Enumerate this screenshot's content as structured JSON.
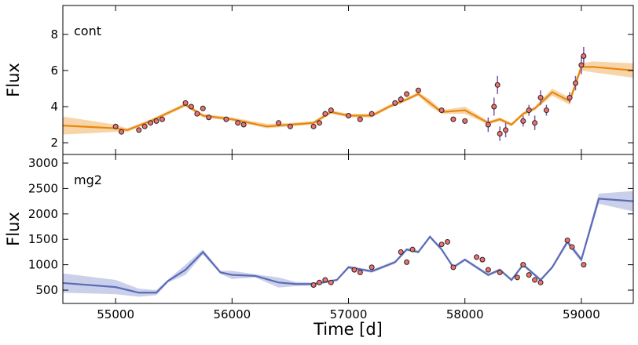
{
  "chart_data": [
    {
      "type": "line",
      "panel_label": "cont",
      "ylabel": "Flux",
      "xlim": [
        54547,
        59446
      ],
      "xticks": [
        55000,
        56000,
        57000,
        58000,
        59000
      ],
      "ylim": [
        1.35,
        9.6
      ],
      "yticks": [
        2,
        4,
        6,
        8
      ],
      "model": {
        "color": "#e8870e",
        "band_color": "#f2b96e",
        "x": [
          54547,
          55000,
          55100,
          55300,
          55600,
          55750,
          56000,
          56300,
          56500,
          56700,
          56850,
          57000,
          57200,
          57350,
          57500,
          57600,
          57700,
          57800,
          58000,
          58200,
          58300,
          58400,
          58500,
          58600,
          58750,
          58900,
          59000,
          59100,
          59446
        ],
        "y": [
          2.95,
          2.8,
          2.7,
          3.2,
          4.1,
          3.5,
          3.3,
          2.9,
          3.0,
          3.1,
          3.7,
          3.5,
          3.5,
          4.0,
          4.4,
          4.7,
          4.2,
          3.7,
          3.8,
          3.1,
          3.3,
          3.0,
          3.6,
          3.9,
          4.8,
          4.3,
          6.2,
          6.2,
          6.0
        ],
        "lower": [
          2.45,
          2.6,
          2.6,
          3.1,
          4.0,
          3.4,
          3.2,
          2.8,
          2.9,
          3.0,
          3.6,
          3.4,
          3.4,
          3.9,
          4.3,
          4.6,
          4.0,
          3.6,
          3.6,
          3.0,
          3.2,
          2.9,
          3.5,
          3.8,
          4.6,
          4.1,
          6.0,
          5.9,
          5.6
        ],
        "upper": [
          3.45,
          3.0,
          2.8,
          3.3,
          4.2,
          3.6,
          3.4,
          3.05,
          3.1,
          3.2,
          3.8,
          3.6,
          3.6,
          4.1,
          4.5,
          4.8,
          4.4,
          3.8,
          4.0,
          3.2,
          3.4,
          3.1,
          3.7,
          4.0,
          5.0,
          4.5,
          6.4,
          6.5,
          6.4
        ]
      },
      "observations": {
        "color": "#f07070",
        "edge_color": "#222222",
        "error_color": "#8050a0",
        "x": [
          55000,
          55050,
          55200,
          55250,
          55300,
          55350,
          55400,
          55600,
          55650,
          55700,
          55750,
          55800,
          55950,
          56050,
          56100,
          56400,
          56500,
          56700,
          56750,
          56800,
          56850,
          57000,
          57100,
          57200,
          57400,
          57450,
          57500,
          57600,
          57800,
          57900,
          58000,
          58200,
          58250,
          58280,
          58300,
          58350,
          58500,
          58550,
          58600,
          58650,
          58700,
          58900,
          58950,
          59000,
          59020
        ],
        "y": [
          2.9,
          2.6,
          2.7,
          2.9,
          3.1,
          3.2,
          3.3,
          4.2,
          4.0,
          3.6,
          3.9,
          3.4,
          3.3,
          3.1,
          3.0,
          3.1,
          2.9,
          2.9,
          3.1,
          3.6,
          3.8,
          3.5,
          3.3,
          3.6,
          4.2,
          4.4,
          4.7,
          4.9,
          3.8,
          3.3,
          3.2,
          3.0,
          4.0,
          5.2,
          2.5,
          2.7,
          3.2,
          3.8,
          3.1,
          4.5,
          3.8,
          4.5,
          5.3,
          6.3,
          6.8
        ],
        "error": [
          0.05,
          0.05,
          0.1,
          0.1,
          0.1,
          0.1,
          0.1,
          0.1,
          0.1,
          0.1,
          0.15,
          0.1,
          0.1,
          0.1,
          0.1,
          0.1,
          0.1,
          0.1,
          0.1,
          0.15,
          0.1,
          0.1,
          0.1,
          0.1,
          0.15,
          0.2,
          0.15,
          0.1,
          0.1,
          0.1,
          0.1,
          0.4,
          0.5,
          0.5,
          0.4,
          0.4,
          0.3,
          0.3,
          0.4,
          0.4,
          0.3,
          0.3,
          0.4,
          0.5,
          0.5
        ]
      }
    },
    {
      "type": "line",
      "panel_label": "mg2",
      "ylabel": "Flux",
      "xlabel": "Time [d]",
      "xlim": [
        54547,
        59446
      ],
      "xticks": [
        55000,
        56000,
        57000,
        58000,
        59000
      ],
      "ylim": [
        238,
        3170
      ],
      "yticks": [
        500,
        1000,
        1500,
        2000,
        2500,
        3000
      ],
      "model": {
        "color": "#5b6bb5",
        "band_color": "#a9b0dc",
        "x": [
          54547,
          55000,
          55200,
          55350,
          55450,
          55600,
          55750,
          55900,
          56000,
          56200,
          56400,
          56550,
          56700,
          56900,
          57000,
          57200,
          57400,
          57500,
          57600,
          57700,
          57800,
          57900,
          58000,
          58200,
          58300,
          58400,
          58500,
          58650,
          58750,
          58880,
          59000,
          59150,
          59446
        ],
        "y": [
          640,
          560,
          450,
          450,
          680,
          900,
          1250,
          850,
          800,
          780,
          650,
          620,
          620,
          700,
          950,
          870,
          1050,
          1300,
          1250,
          1550,
          1300,
          950,
          1100,
          800,
          900,
          700,
          1000,
          700,
          950,
          1450,
          1100,
          2300,
          2250
        ],
        "lower": [
          450,
          420,
          370,
          400,
          650,
          800,
          1200,
          820,
          720,
          750,
          550,
          580,
          590,
          680,
          920,
          840,
          1020,
          1270,
          1220,
          1520,
          1270,
          920,
          1070,
          770,
          870,
          670,
          970,
          670,
          920,
          1400,
          1050,
          2200,
          2050
        ],
        "upper": [
          830,
          700,
          530,
          500,
          710,
          1000,
          1300,
          880,
          880,
          810,
          750,
          660,
          650,
          720,
          980,
          900,
          1080,
          1330,
          1280,
          1580,
          1330,
          980,
          1130,
          830,
          930,
          730,
          1030,
          730,
          980,
          1500,
          1150,
          2400,
          2450
        ]
      },
      "observations": {
        "color": "#f07070",
        "edge_color": "#222222",
        "error_color": "#8050a0",
        "x": [
          56700,
          56750,
          56800,
          56850,
          57050,
          57100,
          57200,
          57450,
          57500,
          57550,
          57800,
          57850,
          57900,
          58100,
          58150,
          58200,
          58300,
          58450,
          58500,
          58550,
          58600,
          58650,
          58880,
          58920,
          59020
        ],
        "y": [
          600,
          650,
          700,
          650,
          900,
          850,
          950,
          1250,
          1050,
          1300,
          1400,
          1450,
          950,
          1150,
          1100,
          900,
          850,
          750,
          1000,
          800,
          700,
          650,
          1480,
          1350,
          1000
        ],
        "error": [
          30,
          30,
          30,
          30,
          30,
          30,
          30,
          30,
          30,
          30,
          30,
          30,
          30,
          30,
          30,
          30,
          30,
          30,
          30,
          30,
          30,
          30,
          30,
          30,
          30
        ]
      }
    }
  ]
}
